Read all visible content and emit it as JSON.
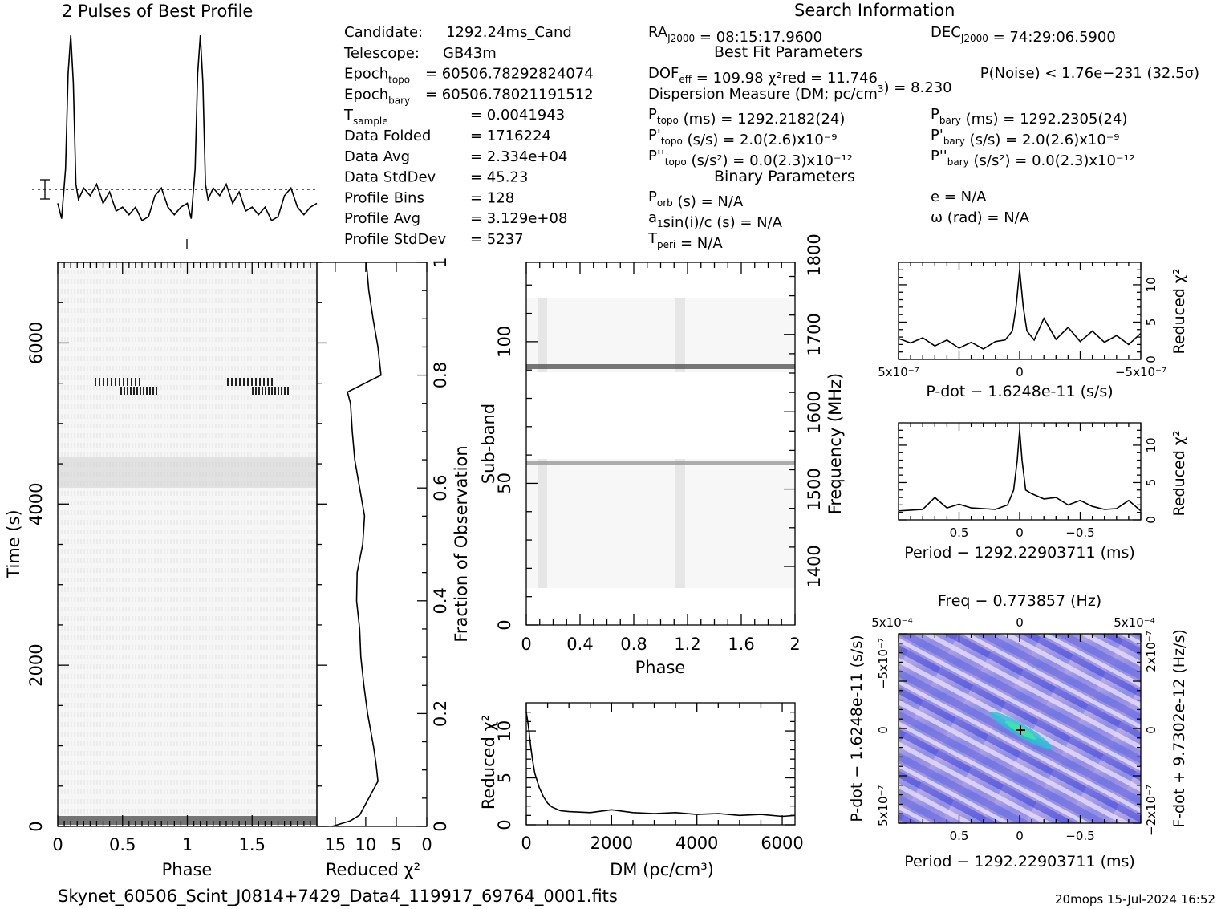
{
  "header": {
    "profile_title": "2 Pulses of Best Profile",
    "search_title": "Search Information",
    "best_fit_title": "Best Fit Parameters",
    "binary_title": "Binary Parameters",
    "filename": "Skynet_60506_Scint_J0814+7429_Data4_119917_69764_0001.fits",
    "footer_stamp": "20mops  15-Jul-2024 16:52"
  },
  "info_left": [
    {
      "label": "Candidate:",
      "sub": "",
      "sup": "",
      "rest": "",
      "value": "1292.24ms_Cand"
    },
    {
      "label": "Telescope:",
      "sub": "",
      "sup": "",
      "rest": "",
      "value": "GB43m"
    },
    {
      "label": "Epoch",
      "sub": "topo",
      "sup": "",
      "rest": "",
      "value": "= 60506.78292824074"
    },
    {
      "label": "Epoch",
      "sub": "bary",
      "sup": "",
      "rest": "",
      "value": "= 60506.78021191512"
    },
    {
      "label": "T",
      "sub": "sample",
      "sup": "",
      "rest": "",
      "value": "=   0.0041943"
    },
    {
      "label": "Data Folded",
      "sub": "",
      "sup": "",
      "rest": "",
      "value": "=   1716224"
    },
    {
      "label": "Data Avg",
      "sub": "",
      "sup": "",
      "rest": "",
      "value": "=   2.334e+04"
    },
    {
      "label": "Data StdDev",
      "sub": "",
      "sup": "",
      "rest": "",
      "value": "=   45.23"
    },
    {
      "label": "Profile Bins",
      "sub": "",
      "sup": "",
      "rest": "",
      "value": "=   128"
    },
    {
      "label": "Profile Avg",
      "sub": "",
      "sup": "",
      "rest": "",
      "value": "=   3.129e+08"
    },
    {
      "label": "Profile StdDev",
      "sub": "",
      "sup": "",
      "rest": "",
      "value": "=   5237"
    }
  ],
  "info_mid": [
    {
      "label": "RA",
      "sub": "J2000",
      "sup": "",
      "rest": "",
      "value": " = 08:15:17.9600"
    },
    {
      "label": "DOF",
      "sub": "eff",
      "sup": "",
      "rest": "",
      "value": " = 109.98  χ²red = 11.746"
    },
    {
      "label": "Dispersion Measure (DM; pc/cm",
      "sub": "",
      "sup": "3",
      "rest": ")",
      "value": " = 8.230"
    },
    {
      "label": "P",
      "sub": "topo",
      "sup": "",
      "rest": "",
      "value": " (ms) =   1292.2182(24)"
    },
    {
      "label": "P'",
      "sub": "topo",
      "sup": "",
      "rest": "",
      "value": " (s/s) =  2.0(2.6)x10⁻⁹"
    },
    {
      "label": "P''",
      "sub": "topo",
      "sup": "",
      "rest": "",
      "value": " (s/s²) = 0.0(2.3)x10⁻¹²"
    },
    {
      "label": "P",
      "sub": "orb",
      "sup": "",
      "rest": "",
      "value": " (s) = N/A"
    },
    {
      "label": "a",
      "sub": "1",
      "sup": "",
      "rest": "",
      "value": "sin(i)/c (s) = N/A"
    },
    {
      "label": "T",
      "sub": "peri",
      "sup": "",
      "rest": "",
      "value": " = N/A"
    }
  ],
  "info_right": [
    {
      "label": "DEC",
      "sub": "J2000",
      "sup": "",
      "rest": "",
      "value": " = 74:29:06.5900"
    },
    {
      "label": "P(Noise) < 1.76e−231",
      "sub": "",
      "sup": "",
      "rest": "",
      "value": "  (32.5σ)"
    },
    {
      "label": "P",
      "sub": "bary",
      "sup": "",
      "rest": "",
      "value": " (ms) =   1292.2305(24)"
    },
    {
      "label": "P'",
      "sub": "bary",
      "sup": "",
      "rest": "",
      "value": " (s/s) =   2.0(2.6)x10⁻⁹"
    },
    {
      "label": "P''",
      "sub": "bary",
      "sup": "",
      "rest": "",
      "value": " (s/s²) = 0.0(2.3)x10⁻¹²"
    },
    {
      "label": "e = N/A",
      "sub": "",
      "sup": "",
      "rest": "",
      "value": ""
    },
    {
      "label": "ω (rad) = N/A",
      "sub": "",
      "sup": "",
      "rest": "",
      "value": ""
    }
  ],
  "chart_data": [
    {
      "id": "profile",
      "type": "line",
      "title": "2 Pulses of Best Profile",
      "xlim": [
        0,
        2
      ],
      "phase": [
        0.0,
        0.03,
        0.06,
        0.08,
        0.1,
        0.12,
        0.14,
        0.16,
        0.2,
        0.25,
        0.3,
        0.35,
        0.4,
        0.45,
        0.5,
        0.55,
        0.6,
        0.65,
        0.7,
        0.75,
        0.8,
        0.85,
        0.9,
        0.95,
        1.0,
        1.03,
        1.06,
        1.08,
        1.1,
        1.12,
        1.14,
        1.16,
        1.2,
        1.25,
        1.3,
        1.35,
        1.4,
        1.45,
        1.5,
        1.55,
        1.6,
        1.65,
        1.7,
        1.75,
        1.8,
        1.85,
        1.9,
        1.95,
        2.0
      ],
      "values": [
        0.12,
        0.04,
        0.3,
        0.8,
        1.0,
        0.75,
        0.22,
        0.14,
        0.2,
        0.16,
        0.22,
        0.12,
        0.18,
        0.08,
        0.1,
        0.06,
        0.1,
        0.03,
        0.05,
        0.16,
        0.2,
        0.1,
        0.06,
        0.1,
        0.12,
        0.04,
        0.3,
        0.8,
        1.0,
        0.75,
        0.22,
        0.14,
        0.2,
        0.16,
        0.22,
        0.12,
        0.18,
        0.08,
        0.1,
        0.06,
        0.1,
        0.03,
        0.05,
        0.16,
        0.2,
        0.1,
        0.06,
        0.1,
        0.12
      ]
    },
    {
      "id": "time_phase",
      "type": "heatmap",
      "xlabel": "Phase",
      "ylabel": "Time (s)",
      "xticks": [
        "0",
        "0.5",
        "1",
        "1.5"
      ],
      "yticks": [
        "0",
        "2000",
        "4000",
        "6000"
      ],
      "xlim": [
        0,
        2
      ],
      "ylim": [
        0,
        7000
      ]
    },
    {
      "id": "time_chi2",
      "type": "line",
      "xlabel": "Reduced χ²",
      "ylabel": "Fraction of Observation",
      "xticks": [
        "15",
        "10",
        "5",
        "0"
      ],
      "yticks": [
        "0",
        "0.2",
        "0.4",
        "0.6",
        "0.8",
        "1"
      ],
      "xlim": [
        18,
        0
      ],
      "ylim": [
        0,
        1
      ],
      "fraction": [
        0.0,
        0.01,
        0.02,
        0.05,
        0.08,
        0.11,
        0.14,
        0.2,
        0.25,
        0.3,
        0.35,
        0.4,
        0.45,
        0.5,
        0.55,
        0.6,
        0.65,
        0.7,
        0.75,
        0.77,
        0.8,
        0.85,
        0.9,
        0.95,
        1.0
      ],
      "chi2": [
        15.5,
        12.5,
        11.0,
        9.5,
        8.0,
        8.3,
        8.7,
        9.7,
        10.3,
        10.8,
        11.0,
        11.5,
        11.4,
        10.5,
        10.2,
        11.0,
        11.8,
        12.2,
        12.5,
        13.0,
        7.5,
        8.0,
        8.8,
        9.5,
        9.9
      ]
    },
    {
      "id": "subband_phase",
      "type": "heatmap",
      "xlabel": "Phase",
      "ylabel": "Sub-band",
      "y2label": "Frequency (MHz)",
      "xticks": [
        "0",
        "0.4",
        "0.8",
        "1.2",
        "1.6",
        "2"
      ],
      "yticks": [
        "0",
        "50",
        "100"
      ],
      "y2ticks": [
        "1400",
        "1500",
        "1600",
        "1700",
        "1800"
      ],
      "xlim": [
        0,
        2
      ],
      "ylim": [
        0,
        128
      ]
    },
    {
      "id": "dm_chi2",
      "type": "line",
      "xlabel": "DM (pc/cm³)",
      "ylabel": "Reduced χ²",
      "xticks": [
        "0",
        "2000",
        "4000",
        "6000"
      ],
      "yticks": [
        "0",
        "5",
        "10"
      ],
      "xlim": [
        0,
        6300
      ],
      "ylim": [
        0,
        13
      ],
      "x": [
        0,
        50,
        100,
        150,
        200,
        300,
        400,
        500,
        600,
        800,
        1000,
        1500,
        2000,
        2500,
        3000,
        3500,
        4000,
        4500,
        5000,
        5500,
        6000,
        6300
      ],
      "y": [
        12.0,
        10.5,
        8.5,
        6.8,
        5.5,
        4.0,
        3.0,
        2.3,
        1.9,
        1.5,
        1.4,
        1.3,
        1.6,
        1.3,
        1.2,
        1.3,
        1.1,
        1.2,
        1.0,
        1.1,
        0.9,
        1.0
      ]
    },
    {
      "id": "pdot_chi2",
      "type": "line",
      "xlabel": "P-dot − 1.6248e-11 (s/s)",
      "ylabel": "Reduced χ²",
      "xticks": [
        "5x10⁻⁷",
        "0",
        "−5x10⁻⁷"
      ],
      "yticks": [
        "0",
        "5",
        "10"
      ],
      "xlim": [
        5,
        -5
      ],
      "ylim": [
        0,
        13
      ],
      "x": [
        5,
        4.5,
        4,
        3.5,
        3,
        2.5,
        2,
        1.5,
        1,
        0.6,
        0.3,
        0.15,
        0,
        -0.15,
        -0.3,
        -0.6,
        -1,
        -1.5,
        -2,
        -2.5,
        -3,
        -3.5,
        -4,
        -4.5,
        -5
      ],
      "y": [
        2.8,
        2.2,
        2.9,
        1.8,
        2.6,
        1.5,
        2.3,
        1.4,
        2.4,
        2.6,
        3.8,
        7.0,
        12.0,
        7.0,
        3.8,
        2.6,
        5.5,
        2.7,
        4.3,
        2.4,
        3.8,
        2.3,
        3.2,
        2.0,
        3.5
      ]
    },
    {
      "id": "period_chi2",
      "type": "line",
      "xlabel": "Period − 1292.22903711 (ms)",
      "ylabel": "Reduced χ²",
      "xticks": [
        "0.5",
        "0",
        "−0.5"
      ],
      "yticks": [
        "0",
        "5",
        "10"
      ],
      "xlim": [
        1,
        -1
      ],
      "ylim": [
        0,
        13
      ],
      "x": [
        1,
        0.9,
        0.8,
        0.7,
        0.6,
        0.5,
        0.4,
        0.3,
        0.2,
        0.1,
        0.05,
        0.02,
        0,
        -0.02,
        -0.05,
        -0.1,
        -0.2,
        -0.3,
        -0.4,
        -0.5,
        -0.6,
        -0.7,
        -0.8,
        -0.9,
        -1
      ],
      "y": [
        1.2,
        1.3,
        1.4,
        3.0,
        1.6,
        2.1,
        1.6,
        1.5,
        1.4,
        2.0,
        4.0,
        8.0,
        12.0,
        8.0,
        4.0,
        3.5,
        2.8,
        3.0,
        2.0,
        2.6,
        1.8,
        1.4,
        1.5,
        2.6,
        1.2
      ]
    },
    {
      "id": "ppdot",
      "type": "heatmap",
      "title": "Freq − 0.773857 (Hz)",
      "xlabel": "Period − 1292.22903711 (ms)",
      "ylabel": "P-dot − 1.6248e-11 (s/s)",
      "y2label": "F-dot + 9.7302e-12 (Hz/s)",
      "xticks": [
        "0.5",
        "0",
        "−0.5"
      ],
      "x2ticks": [
        "5x10⁻⁴",
        "0",
        "5x10⁻⁴"
      ],
      "yticks": [
        "5x10⁻⁷",
        "0",
        "−5x10⁻⁷"
      ],
      "y2ticks": [
        "−2x10⁻⁷",
        "0",
        "2x10⁻⁷"
      ]
    }
  ]
}
